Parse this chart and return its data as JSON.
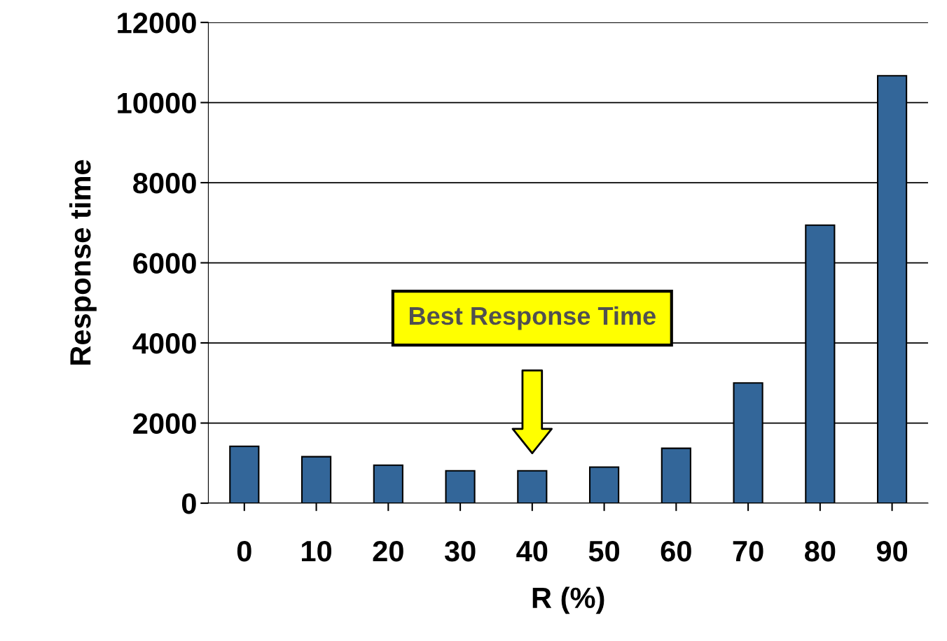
{
  "chart_data": {
    "type": "bar",
    "xlabel": "R (%)",
    "ylabel": "Response time",
    "categories": [
      "0",
      "10",
      "20",
      "30",
      "40",
      "50",
      "60",
      "70",
      "80",
      "90"
    ],
    "series": [
      {
        "color": "#336699",
        "values": [
          1420,
          1160,
          950,
          810,
          810,
          900,
          1370,
          3000,
          6940,
          10670
        ]
      }
    ],
    "ylim": [
      0,
      12000
    ],
    "yticks": [
      0,
      2000,
      4000,
      6000,
      8000,
      10000,
      12000
    ],
    "grid": "y",
    "annotations": [
      "Best Response Time"
    ]
  }
}
